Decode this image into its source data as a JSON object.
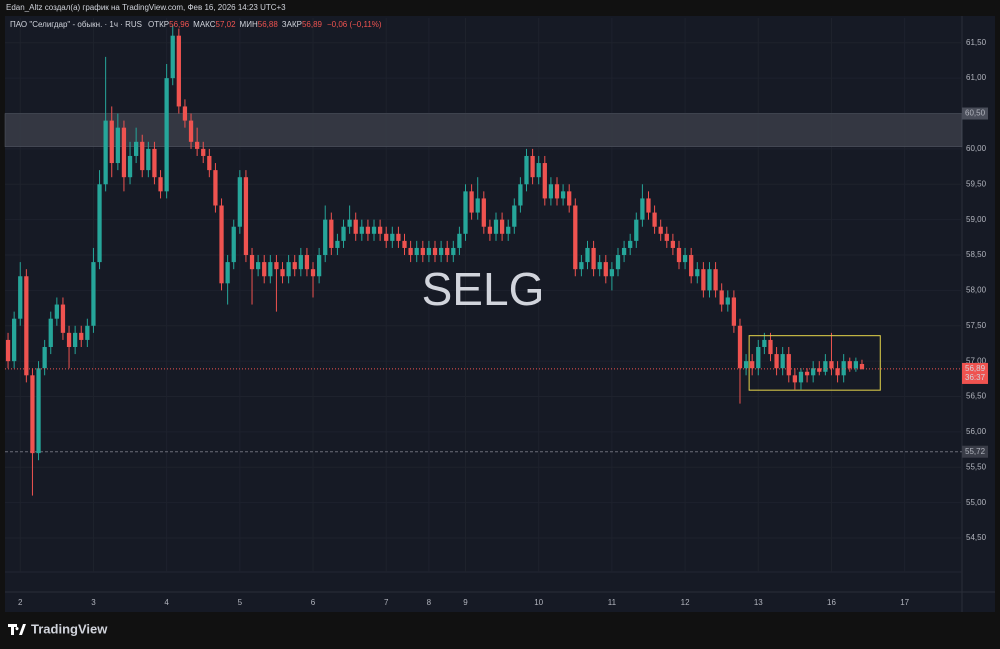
{
  "attribution": "Edan_Altz создал(а) график на TradingView.com, Фев 16, 2026 14:23 UTC+3",
  "footer_logo": "TradingView",
  "chart_data": {
    "type": "candlestick",
    "title": "ПАО \"Селигдар\" - обыкн. · 1ч · RUS",
    "watermark": "SELG",
    "legend": {
      "open_label": "ОТКР",
      "open": {
        "value": 56.96,
        "label": "56,96"
      },
      "high_label": "МАКС",
      "high": {
        "value": 57.02,
        "label": "57,02"
      },
      "low_label": "МИН",
      "low": {
        "value": 56.88,
        "label": "56,88"
      },
      "close_label": "ЗАКР",
      "close": {
        "value": 56.89,
        "label": "56,89"
      },
      "change": "−0,06 (−0,11%)"
    },
    "up_color": "#26a69a",
    "down_color": "#ef5350",
    "grid": true,
    "xlim": [
      -0.5,
      156.4
    ],
    "xticks": [
      {
        "value": 2,
        "label": "2"
      },
      {
        "value": 14,
        "label": "3"
      },
      {
        "value": 26,
        "label": "4"
      },
      {
        "value": 38,
        "label": "5"
      },
      {
        "value": 50,
        "label": "6"
      },
      {
        "value": 62,
        "label": "7"
      },
      {
        "value": 69,
        "label": "8"
      },
      {
        "value": 75,
        "label": "9"
      },
      {
        "value": 87,
        "label": "10"
      },
      {
        "value": 99,
        "label": "11"
      },
      {
        "value": 111,
        "label": "12"
      },
      {
        "value": 123,
        "label": "13"
      },
      {
        "value": 135,
        "label": "16"
      },
      {
        "value": 147,
        "label": "17"
      }
    ],
    "ylim": [
      54.02,
      61.85
    ],
    "yticks": [
      {
        "value": 54.5,
        "label": "54,50"
      },
      {
        "value": 55,
        "label": "55,00"
      },
      {
        "value": 55.5,
        "label": "55,50"
      },
      {
        "value": 56,
        "label": "56,00"
      },
      {
        "value": 56.5,
        "label": "56,50"
      },
      {
        "value": 57,
        "label": "57,00"
      },
      {
        "value": 57.5,
        "label": "57,50"
      },
      {
        "value": 58,
        "label": "58,00"
      },
      {
        "value": 58.5,
        "label": "58,50"
      },
      {
        "value": 59,
        "label": "59,00"
      },
      {
        "value": 59.5,
        "label": "59,50"
      },
      {
        "value": 60,
        "label": "60,00"
      },
      {
        "value": 60.5,
        "label": "60,50"
      },
      {
        "value": 61,
        "label": "61,00"
      },
      {
        "value": 61.5,
        "label": "61,50"
      }
    ],
    "band": {
      "range": [
        60.03,
        60.5
      ],
      "label": "60,50"
    },
    "box": {
      "x": [
        121.5,
        143
      ],
      "y": [
        56.59,
        57.36
      ]
    },
    "level_line": {
      "value": 55.72,
      "label": "55,72"
    },
    "price_line": {
      "value": 56.89,
      "label": "56,89",
      "countdown": "36:37"
    },
    "ohlc": [
      [
        57.3,
        57.4,
        56.9,
        57.0
      ],
      [
        57.0,
        57.7,
        56.9,
        57.6
      ],
      [
        57.6,
        58.4,
        57.5,
        58.2
      ],
      [
        58.2,
        58.3,
        56.7,
        56.8
      ],
      [
        56.8,
        56.9,
        55.1,
        55.7
      ],
      [
        55.7,
        57.0,
        55.6,
        56.9
      ],
      [
        56.9,
        57.3,
        56.8,
        57.2
      ],
      [
        57.2,
        57.7,
        57.1,
        57.6
      ],
      [
        57.6,
        57.9,
        57.5,
        57.8
      ],
      [
        57.8,
        57.9,
        57.3,
        57.4
      ],
      [
        57.4,
        57.5,
        56.9,
        57.2
      ],
      [
        57.2,
        57.5,
        57.1,
        57.4
      ],
      [
        57.4,
        57.5,
        57.2,
        57.3
      ],
      [
        57.3,
        57.6,
        57.2,
        57.5
      ],
      [
        57.5,
        58.6,
        57.4,
        58.4
      ],
      [
        58.4,
        59.7,
        58.3,
        59.5
      ],
      [
        59.5,
        61.3,
        59.4,
        60.4
      ],
      [
        60.4,
        60.6,
        59.6,
        59.8
      ],
      [
        59.8,
        60.5,
        59.7,
        60.3
      ],
      [
        60.3,
        60.4,
        59.4,
        59.6
      ],
      [
        59.6,
        60.1,
        59.5,
        59.9
      ],
      [
        59.9,
        60.3,
        59.8,
        60.1
      ],
      [
        60.1,
        60.2,
        59.6,
        59.7
      ],
      [
        59.7,
        60.1,
        59.6,
        60.0
      ],
      [
        60.0,
        60.1,
        59.5,
        59.6
      ],
      [
        59.6,
        59.7,
        59.3,
        59.4
      ],
      [
        59.4,
        61.2,
        59.3,
        61.0
      ],
      [
        61.0,
        61.75,
        60.9,
        61.6
      ],
      [
        61.6,
        61.7,
        60.5,
        60.6
      ],
      [
        60.6,
        60.7,
        60.3,
        60.4
      ],
      [
        60.4,
        60.5,
        60.0,
        60.1
      ],
      [
        60.1,
        60.3,
        59.9,
        60.0
      ],
      [
        60.0,
        60.1,
        59.8,
        59.9
      ],
      [
        59.9,
        60.0,
        59.6,
        59.7
      ],
      [
        59.7,
        59.8,
        59.1,
        59.2
      ],
      [
        59.2,
        59.3,
        58.0,
        58.1
      ],
      [
        58.1,
        58.5,
        57.8,
        58.4
      ],
      [
        58.4,
        59.0,
        58.3,
        58.9
      ],
      [
        58.9,
        59.7,
        58.8,
        59.6
      ],
      [
        59.6,
        59.7,
        58.4,
        58.5
      ],
      [
        58.5,
        58.6,
        57.8,
        58.3
      ],
      [
        58.3,
        58.5,
        58.2,
        58.4
      ],
      [
        58.4,
        58.5,
        58.1,
        58.2
      ],
      [
        58.2,
        58.5,
        58.1,
        58.4
      ],
      [
        58.4,
        58.5,
        57.7,
        58.3
      ],
      [
        58.3,
        58.4,
        58.1,
        58.2
      ],
      [
        58.2,
        58.5,
        58.1,
        58.4
      ],
      [
        58.4,
        58.5,
        58.2,
        58.3
      ],
      [
        58.3,
        58.6,
        58.2,
        58.5
      ],
      [
        58.5,
        58.6,
        58.2,
        58.3
      ],
      [
        58.3,
        58.4,
        57.9,
        58.2
      ],
      [
        58.2,
        58.6,
        58.1,
        58.5
      ],
      [
        58.5,
        59.2,
        58.4,
        59.0
      ],
      [
        59.0,
        59.1,
        58.5,
        58.6
      ],
      [
        58.6,
        58.8,
        58.5,
        58.7
      ],
      [
        58.7,
        59.0,
        58.6,
        58.9
      ],
      [
        58.9,
        59.2,
        58.8,
        59.0
      ],
      [
        59.0,
        59.1,
        58.7,
        58.8
      ],
      [
        58.8,
        59.0,
        58.7,
        58.9
      ],
      [
        58.9,
        59.0,
        58.7,
        58.8
      ],
      [
        58.8,
        59.0,
        58.7,
        58.9
      ],
      [
        58.9,
        59.0,
        58.7,
        58.8
      ],
      [
        58.8,
        58.9,
        58.6,
        58.7
      ],
      [
        58.7,
        58.9,
        58.6,
        58.8
      ],
      [
        58.8,
        58.9,
        58.6,
        58.7
      ],
      [
        58.7,
        58.8,
        58.5,
        58.6
      ],
      [
        58.6,
        58.7,
        58.4,
        58.5
      ],
      [
        58.5,
        58.7,
        58.4,
        58.6
      ],
      [
        58.6,
        58.7,
        58.4,
        58.5
      ],
      [
        58.5,
        58.7,
        58.4,
        58.6
      ],
      [
        58.6,
        58.7,
        58.4,
        58.5
      ],
      [
        58.5,
        58.7,
        58.4,
        58.6
      ],
      [
        58.6,
        58.7,
        58.4,
        58.5
      ],
      [
        58.5,
        58.7,
        58.4,
        58.6
      ],
      [
        58.6,
        58.9,
        58.5,
        58.8
      ],
      [
        58.8,
        59.5,
        58.7,
        59.4
      ],
      [
        59.4,
        59.5,
        59.0,
        59.1
      ],
      [
        59.1,
        59.6,
        59.0,
        59.3
      ],
      [
        59.3,
        59.4,
        58.8,
        58.9
      ],
      [
        58.9,
        59.0,
        58.7,
        58.8
      ],
      [
        58.8,
        59.1,
        58.7,
        59.0
      ],
      [
        59.0,
        59.1,
        58.7,
        58.8
      ],
      [
        58.8,
        59.0,
        58.7,
        58.9
      ],
      [
        58.9,
        59.3,
        58.8,
        59.2
      ],
      [
        59.2,
        59.6,
        59.1,
        59.5
      ],
      [
        59.5,
        60.0,
        59.4,
        59.9
      ],
      [
        59.9,
        60.0,
        59.5,
        59.6
      ],
      [
        59.6,
        59.9,
        59.5,
        59.8
      ],
      [
        59.8,
        59.9,
        59.2,
        59.3
      ],
      [
        59.3,
        59.6,
        59.2,
        59.5
      ],
      [
        59.5,
        59.6,
        59.2,
        59.3
      ],
      [
        59.3,
        59.5,
        59.2,
        59.4
      ],
      [
        59.4,
        59.5,
        59.1,
        59.2
      ],
      [
        59.2,
        59.3,
        58.2,
        58.3
      ],
      [
        58.3,
        58.5,
        58.2,
        58.4
      ],
      [
        58.4,
        58.7,
        58.3,
        58.6
      ],
      [
        58.6,
        58.7,
        58.2,
        58.3
      ],
      [
        58.3,
        58.5,
        58.2,
        58.4
      ],
      [
        58.4,
        58.5,
        58.1,
        58.2
      ],
      [
        58.2,
        58.4,
        58.0,
        58.3
      ],
      [
        58.3,
        58.6,
        58.2,
        58.5
      ],
      [
        58.5,
        58.7,
        58.4,
        58.6
      ],
      [
        58.6,
        58.8,
        58.5,
        58.7
      ],
      [
        58.7,
        59.1,
        58.6,
        59.0
      ],
      [
        59.0,
        59.5,
        58.9,
        59.3
      ],
      [
        59.3,
        59.4,
        59.0,
        59.1
      ],
      [
        59.1,
        59.2,
        58.8,
        58.9
      ],
      [
        58.9,
        59.0,
        58.7,
        58.8
      ],
      [
        58.8,
        58.9,
        58.6,
        58.7
      ],
      [
        58.7,
        58.8,
        58.5,
        58.6
      ],
      [
        58.6,
        58.7,
        58.3,
        58.4
      ],
      [
        58.4,
        58.6,
        58.3,
        58.5
      ],
      [
        58.5,
        58.6,
        58.1,
        58.2
      ],
      [
        58.2,
        58.4,
        58.1,
        58.3
      ],
      [
        58.3,
        58.4,
        57.9,
        58.0
      ],
      [
        58.0,
        58.4,
        57.9,
        58.3
      ],
      [
        58.3,
        58.4,
        57.9,
        58.0
      ],
      [
        58.0,
        58.1,
        57.7,
        57.8
      ],
      [
        57.8,
        58.0,
        57.7,
        57.9
      ],
      [
        57.9,
        58.0,
        57.4,
        57.5
      ],
      [
        57.5,
        57.6,
        56.4,
        56.9
      ],
      [
        56.9,
        57.1,
        56.8,
        57.0
      ],
      [
        57.0,
        57.1,
        56.8,
        56.9
      ],
      [
        56.9,
        57.3,
        56.8,
        57.2
      ],
      [
        57.2,
        57.4,
        57.1,
        57.3
      ],
      [
        57.3,
        57.4,
        57.0,
        57.1
      ],
      [
        57.1,
        57.2,
        56.8,
        56.9
      ],
      [
        56.9,
        57.2,
        56.8,
        57.1
      ],
      [
        57.1,
        57.2,
        56.7,
        56.8
      ],
      [
        56.8,
        56.9,
        56.6,
        56.7
      ],
      [
        56.7,
        56.9,
        56.6,
        56.85
      ],
      [
        56.85,
        56.9,
        56.7,
        56.8
      ],
      [
        56.8,
        57.0,
        56.7,
        56.9
      ],
      [
        56.9,
        57.0,
        56.8,
        56.85
      ],
      [
        56.85,
        57.1,
        56.8,
        57.0
      ],
      [
        57.0,
        57.4,
        56.8,
        56.9
      ],
      [
        56.9,
        57.0,
        56.7,
        56.8
      ],
      [
        56.8,
        57.1,
        56.7,
        57.0
      ],
      [
        57.0,
        57.05,
        56.85,
        56.9
      ],
      [
        56.9,
        57.05,
        56.85,
        57.0
      ],
      [
        56.96,
        57.02,
        56.88,
        56.89
      ]
    ]
  }
}
